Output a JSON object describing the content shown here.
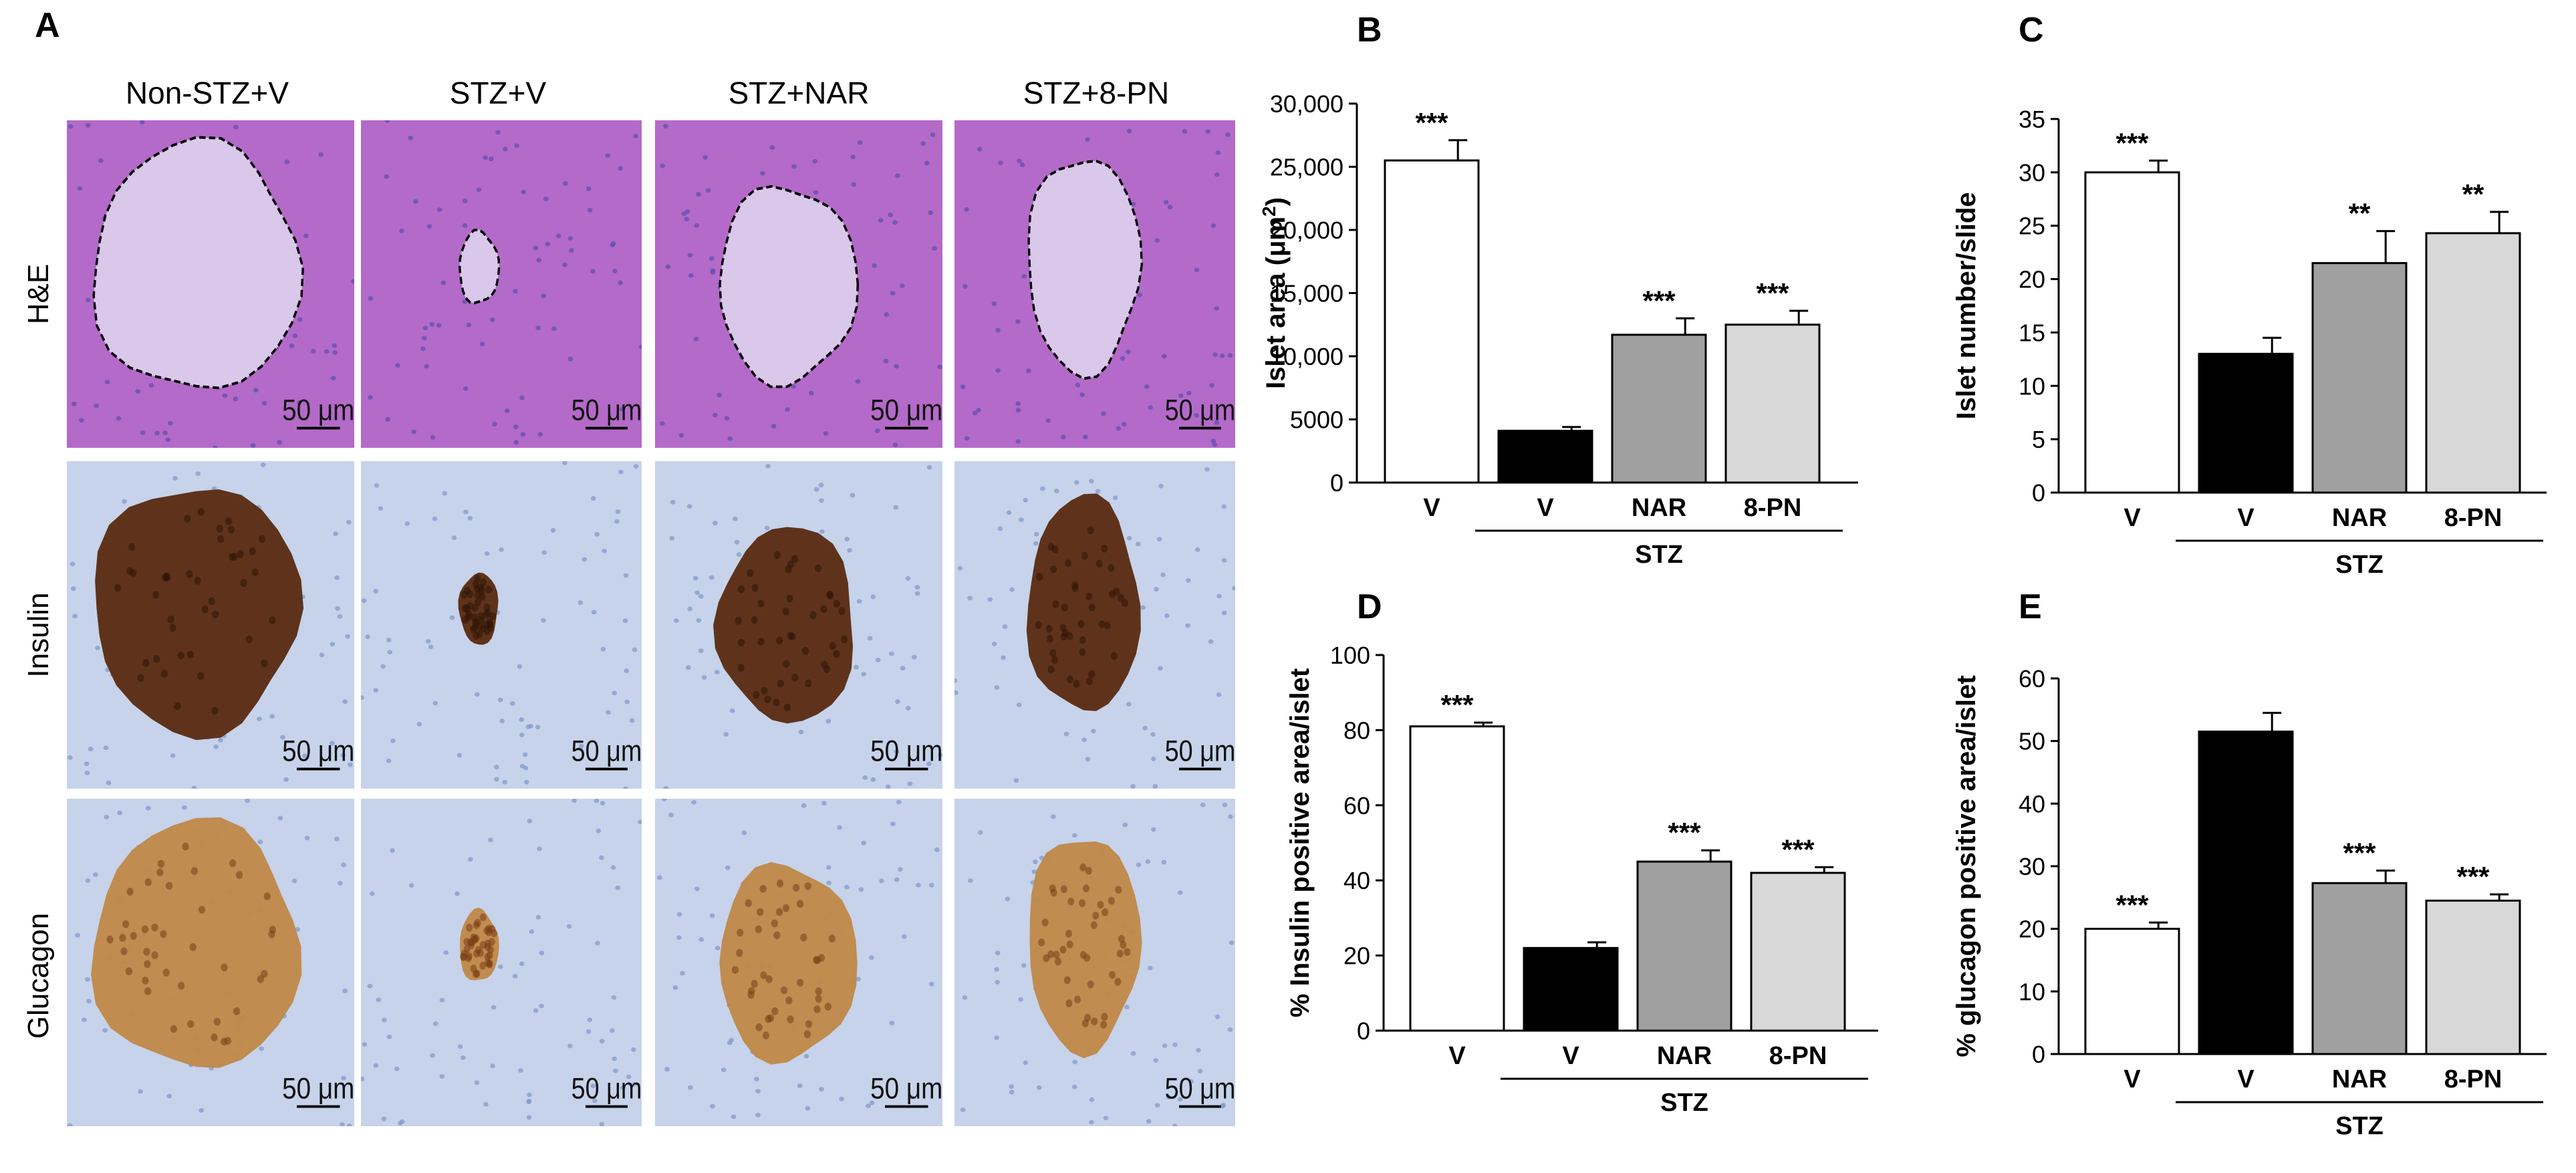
{
  "panel_a": {
    "letter": "A",
    "columns": [
      "Non-STZ+V",
      "STZ+V",
      "STZ+NAR",
      "STZ+8-PN"
    ],
    "rows": [
      "H&E",
      "Insulin",
      "Glucagon"
    ],
    "scale_bar_label": "50 μm"
  },
  "colors": {
    "he_background": "#b46ac8",
    "he_islet": "#d9c8ea",
    "ihc_background": "#c6d3ea",
    "stain_dark": "#5a2a10",
    "stain_light": "#c08848",
    "bar_nonstz": "#ffffff",
    "bar_stz_v": "#000000",
    "bar_nar": "#a0a0a0",
    "bar_8pn": "#d8d8d8"
  },
  "chart_data": [
    {
      "letter": "B",
      "type": "bar",
      "categories": [
        "V",
        "V",
        "NAR",
        "8-PN"
      ],
      "group_label": "STZ",
      "values": [
        25500,
        4100,
        11700,
        12500
      ],
      "errors": [
        1600,
        300,
        1300,
        1100
      ],
      "significance": [
        "***",
        "",
        "***",
        "***"
      ],
      "ylabel_prefix": "Islet area (μm",
      "ylabel_sup": "2",
      "ylabel_suffix": ")",
      "ylim": [
        0,
        30000
      ],
      "ticks": [
        0,
        5000,
        10000,
        15000,
        20000,
        25000,
        30000
      ],
      "tick_labels": [
        "0",
        "5000",
        "10,000",
        "15,000",
        "20,000",
        "25,000",
        "30,000"
      ]
    },
    {
      "letter": "C",
      "type": "bar",
      "categories": [
        "V",
        "V",
        "NAR",
        "8-PN"
      ],
      "group_label": "STZ",
      "values": [
        30,
        13,
        21.5,
        24.3
      ],
      "errors": [
        1.1,
        1.5,
        3,
        2
      ],
      "significance": [
        "***",
        "",
        "**",
        "**"
      ],
      "ylabel_prefix": "Islet number/slide",
      "ylabel_sup": "",
      "ylabel_suffix": "",
      "ylim": [
        0,
        35
      ],
      "ticks": [
        0,
        5,
        10,
        15,
        20,
        25,
        30,
        35
      ],
      "tick_labels": [
        "0",
        "5",
        "10",
        "15",
        "20",
        "25",
        "30",
        "35"
      ]
    },
    {
      "letter": "D",
      "type": "bar",
      "categories": [
        "V",
        "V",
        "NAR",
        "8-PN"
      ],
      "group_label": "STZ",
      "values": [
        81,
        22,
        45,
        42
      ],
      "errors": [
        1,
        1.5,
        3,
        1.5
      ],
      "significance": [
        "***",
        "",
        "***",
        "***"
      ],
      "ylabel_prefix": "% Insulin positive area/islet",
      "ylabel_sup": "",
      "ylabel_suffix": "",
      "ylim": [
        0,
        100
      ],
      "ticks": [
        0,
        20,
        40,
        60,
        80,
        100
      ],
      "tick_labels": [
        "0",
        "20",
        "40",
        "60",
        "80",
        "100"
      ]
    },
    {
      "letter": "E",
      "type": "bar",
      "categories": [
        "V",
        "V",
        "NAR",
        "8-PN"
      ],
      "group_label": "STZ",
      "values": [
        20,
        51.5,
        27.3,
        24.5
      ],
      "errors": [
        1,
        3,
        2,
        1
      ],
      "significance": [
        "***",
        "",
        "***",
        "***"
      ],
      "ylabel_prefix": "% glucagon positive area/islet",
      "ylabel_sup": "",
      "ylabel_suffix": "",
      "ylim": [
        0,
        60
      ],
      "ticks": [
        0,
        10,
        20,
        30,
        40,
        50,
        60
      ],
      "tick_labels": [
        "0",
        "10",
        "20",
        "30",
        "40",
        "50",
        "60"
      ]
    }
  ]
}
